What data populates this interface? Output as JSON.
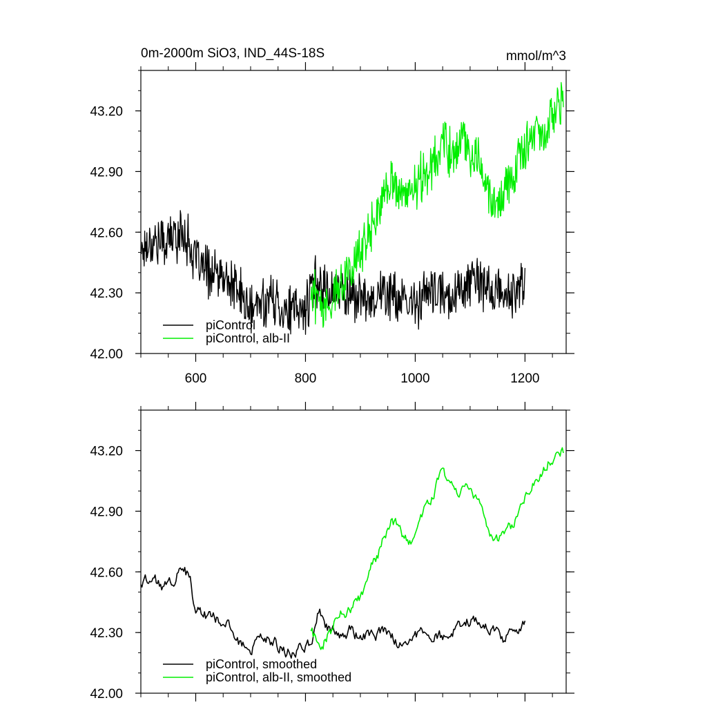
{
  "chart_data": [
    {
      "type": "line",
      "title": "0m-2000m SiO3, IND_44S-18S",
      "units": "mmol/m^3",
      "xlabel": "",
      "ylabel": "",
      "xlim": [
        500,
        1275
      ],
      "ylim": [
        42.0,
        43.4
      ],
      "xticks": [
        600,
        800,
        1000,
        1200
      ],
      "xtick_labels": [
        "600",
        "800",
        "1000",
        "1200"
      ],
      "yticks": [
        42.0,
        42.3,
        42.6,
        42.9,
        43.2
      ],
      "ytick_labels": [
        "42.00",
        "42.30",
        "42.60",
        "42.90",
        "43.20"
      ],
      "legend_position": "bottom-left",
      "grid": false,
      "series": [
        {
          "name": "piControl",
          "color": "#000000",
          "x": [
            500,
            520,
            540,
            560,
            580,
            600,
            620,
            640,
            660,
            680,
            700,
            720,
            740,
            760,
            780,
            800,
            820,
            840,
            860,
            880,
            900,
            920,
            940,
            960,
            980,
            1000,
            1020,
            1040,
            1060,
            1080,
            1100,
            1120,
            1140,
            1160,
            1180,
            1200
          ],
          "y": [
            42.52,
            42.56,
            42.55,
            42.58,
            42.6,
            42.45,
            42.41,
            42.38,
            42.35,
            42.3,
            42.2,
            42.26,
            42.27,
            42.22,
            42.2,
            42.22,
            42.37,
            42.32,
            42.31,
            42.3,
            42.27,
            42.28,
            42.3,
            42.29,
            42.23,
            42.25,
            42.3,
            42.29,
            42.28,
            42.32,
            42.36,
            42.34,
            42.31,
            42.29,
            42.29,
            42.35
          ]
        },
        {
          "name": "piControl, alb-II",
          "color": "#00ee00",
          "x": [
            810,
            830,
            850,
            870,
            890,
            910,
            930,
            950,
            970,
            990,
            1010,
            1030,
            1050,
            1070,
            1090,
            1110,
            1130,
            1150,
            1170,
            1190,
            1210,
            1230,
            1250,
            1270
          ],
          "y": [
            42.3,
            42.25,
            42.28,
            42.38,
            42.45,
            42.55,
            42.68,
            42.84,
            42.82,
            42.76,
            42.86,
            42.92,
            43.06,
            42.98,
            43.04,
            42.98,
            42.86,
            42.74,
            42.86,
            42.98,
            43.06,
            43.08,
            43.16,
            43.24
          ]
        }
      ]
    },
    {
      "type": "line",
      "title": "",
      "xlabel": "",
      "ylabel": "",
      "xlim": [
        500,
        1275
      ],
      "ylim": [
        42.0,
        43.4
      ],
      "yticks": [
        42.0,
        42.3,
        42.6,
        42.9,
        43.2
      ],
      "ytick_labels": [
        "42.00",
        "42.30",
        "42.60",
        "42.90",
        "43.20"
      ],
      "legend_position": "bottom-left",
      "grid": false,
      "series": [
        {
          "name": "piControl, smoothed",
          "color": "#000000",
          "x": [
            500,
            520,
            540,
            560,
            575,
            590,
            600,
            620,
            640,
            660,
            680,
            700,
            720,
            740,
            760,
            780,
            800,
            815,
            825,
            840,
            860,
            880,
            900,
            920,
            940,
            960,
            980,
            1000,
            1020,
            1040,
            1060,
            1080,
            1100,
            1120,
            1140,
            1160,
            1180,
            1200
          ],
          "y": [
            42.54,
            42.57,
            42.52,
            42.56,
            42.63,
            42.57,
            42.4,
            42.38,
            42.36,
            42.32,
            42.25,
            42.21,
            42.27,
            42.26,
            42.21,
            42.19,
            42.24,
            42.27,
            42.41,
            42.33,
            42.29,
            42.31,
            42.27,
            42.28,
            42.3,
            42.28,
            42.22,
            42.28,
            42.3,
            42.27,
            42.28,
            42.34,
            42.37,
            42.35,
            42.32,
            42.27,
            42.31,
            42.36
          ]
        },
        {
          "name": "piControl, alb-II, smoothed",
          "color": "#00ee00",
          "x": [
            810,
            825,
            840,
            860,
            880,
            900,
            920,
            940,
            955,
            970,
            985,
            1000,
            1015,
            1030,
            1050,
            1065,
            1080,
            1095,
            1110,
            1125,
            1140,
            1160,
            1180,
            1200,
            1220,
            1240,
            1260,
            1270
          ],
          "y": [
            42.31,
            42.23,
            42.28,
            42.38,
            42.42,
            42.48,
            42.62,
            42.74,
            42.85,
            42.82,
            42.75,
            42.78,
            42.89,
            42.95,
            43.1,
            43.02,
            43.0,
            43.05,
            42.98,
            42.9,
            42.75,
            42.76,
            42.84,
            42.98,
            43.06,
            43.12,
            43.22,
            43.2
          ]
        }
      ]
    }
  ],
  "legend": {
    "top": [
      "piControl",
      "piControl, alb-II"
    ],
    "bottom": [
      "piControl, smoothed",
      "piControl, alb-II, smoothed"
    ]
  }
}
